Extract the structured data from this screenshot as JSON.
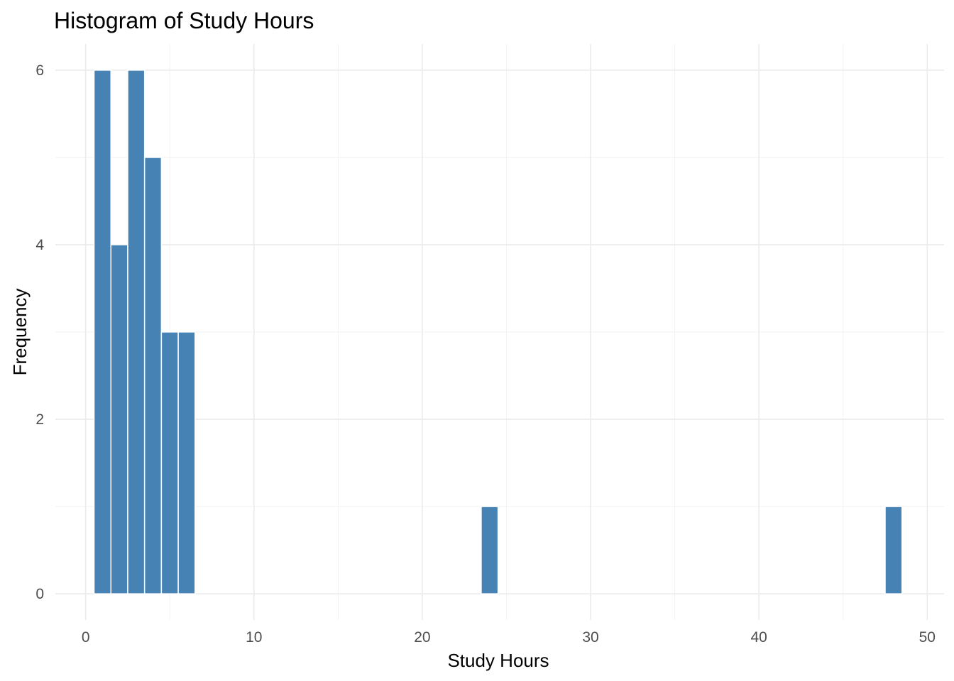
{
  "chart_data": {
    "type": "bar",
    "title": "Histogram of Study Hours",
    "xlabel": "Study Hours",
    "ylabel": "Frequency",
    "bar_color": "#4682B4",
    "bin_width": 1,
    "bins": [
      {
        "x": 1,
        "count": 6
      },
      {
        "x": 2,
        "count": 4
      },
      {
        "x": 3,
        "count": 6
      },
      {
        "x": 4,
        "count": 5
      },
      {
        "x": 5,
        "count": 3
      },
      {
        "x": 6,
        "count": 3
      },
      {
        "x": 24,
        "count": 1
      },
      {
        "x": 48,
        "count": 1
      }
    ],
    "xlim": [
      -1.8,
      51.0
    ],
    "ylim": [
      -0.3,
      6.3
    ],
    "x_ticks": [
      "0",
      "10",
      "20",
      "30",
      "40",
      "50"
    ],
    "y_ticks": [
      "0",
      "2",
      "4",
      "6"
    ],
    "grid": true,
    "legend": "none"
  }
}
